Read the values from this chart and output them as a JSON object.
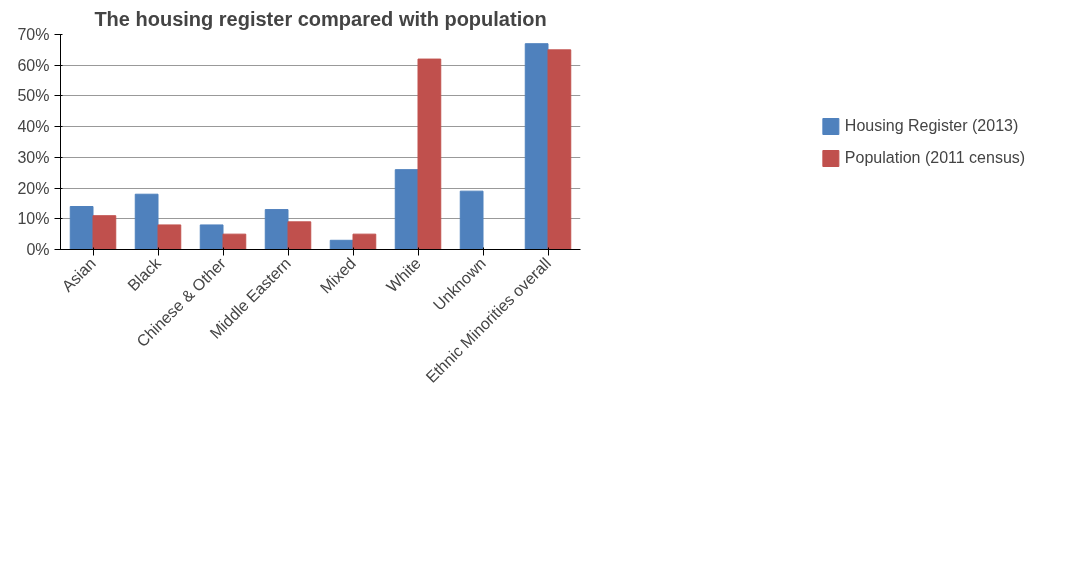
{
  "chart_data": {
    "type": "bar",
    "title": "The housing register compared with population",
    "categories": [
      "Asian",
      "Black",
      "Chinese & Other",
      "Middle Eastern",
      "Mixed",
      "White",
      "Unknown",
      "Ethnic Minorities overall"
    ],
    "series": [
      {
        "name": "Housing Register (2013)",
        "color": "#4f81bd",
        "values": [
          14,
          18,
          8,
          13,
          3,
          26,
          19,
          67
        ]
      },
      {
        "name": "Population (2011 census)",
        "color": "#c0504d",
        "values": [
          11,
          8,
          5,
          9,
          5,
          62,
          null,
          65
        ]
      }
    ],
    "ylim": [
      0,
      70
    ],
    "yticks": [
      {
        "value": 0,
        "label": "0%"
      },
      {
        "value": 10,
        "label": "10%"
      },
      {
        "value": 20,
        "label": "20%"
      },
      {
        "value": 30,
        "label": "30%"
      },
      {
        "value": 40,
        "label": "40%"
      },
      {
        "value": 50,
        "label": "50%"
      },
      {
        "value": 60,
        "label": "60%"
      },
      {
        "value": 70,
        "label": "70%"
      }
    ],
    "grid": "y",
    "legend": "right"
  }
}
